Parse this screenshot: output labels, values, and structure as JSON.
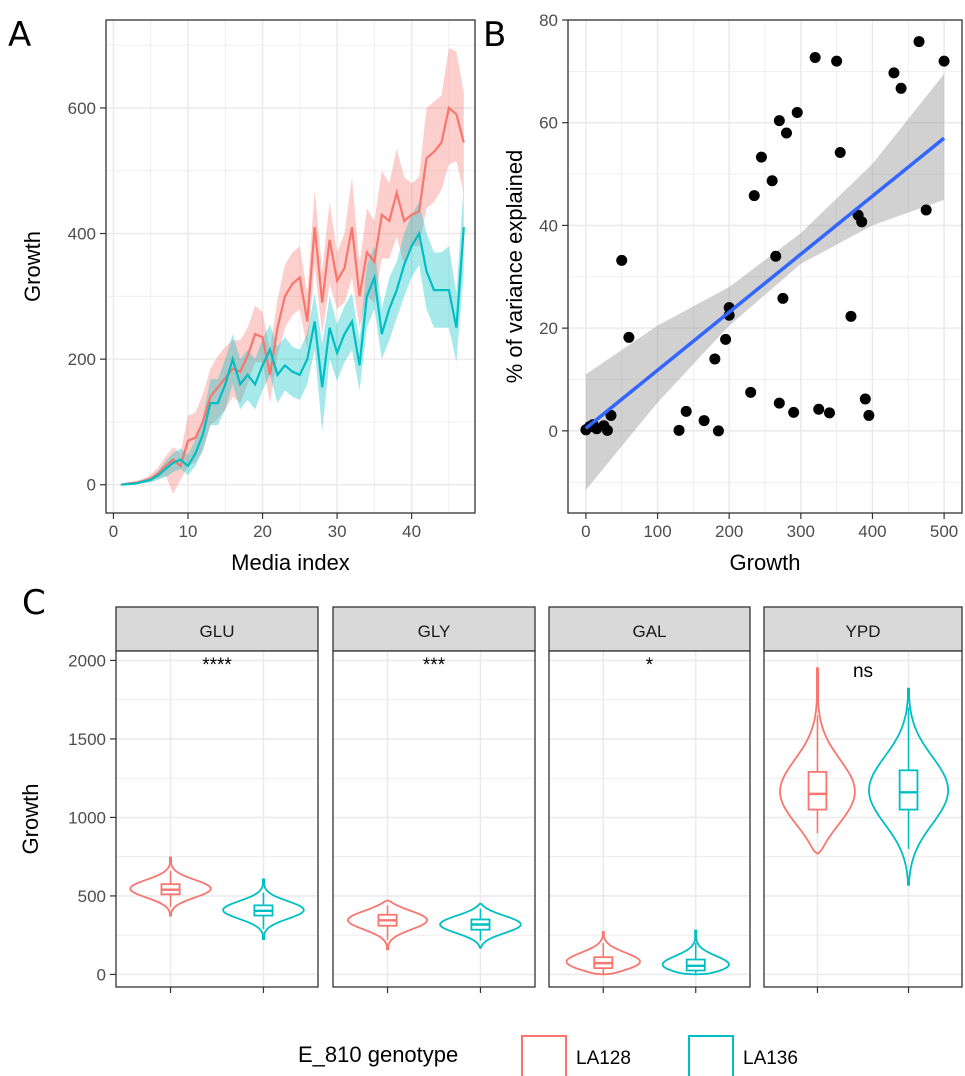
{
  "colors": {
    "LA128": "#F8766D",
    "LA136": "#00BFC4",
    "fit": "#3366FF",
    "ribbon": "#999999",
    "grid": "#EBEBEB",
    "strip_bg": "#D9D9D9"
  },
  "panel_labels": [
    "A",
    "B",
    "C"
  ],
  "chart_data": [
    {
      "panel": "A",
      "type": "line",
      "xlabel": "Media index",
      "ylabel": "Growth",
      "xlim": [
        -1,
        48.5
      ],
      "ylim": [
        -45,
        740
      ],
      "x_ticks": [
        0,
        10,
        20,
        30,
        40
      ],
      "y_ticks": [
        0,
        200,
        400,
        600
      ],
      "grid": true,
      "series": [
        {
          "name": "LA128",
          "color": "#F8766D",
          "x": [
            1,
            2,
            3,
            4,
            5,
            6,
            7,
            8,
            9,
            10,
            11,
            12,
            13,
            14,
            15,
            16,
            17,
            18,
            19,
            20,
            21,
            22,
            23,
            24,
            25,
            26,
            27,
            28,
            29,
            30,
            31,
            32,
            33,
            34,
            35,
            36,
            37,
            38,
            39,
            40,
            41,
            42,
            43,
            44,
            45,
            46,
            47
          ],
          "values": [
            0,
            2,
            3,
            6,
            10,
            18,
            30,
            40,
            30,
            70,
            75,
            100,
            140,
            155,
            170,
            185,
            180,
            205,
            240,
            235,
            175,
            250,
            300,
            320,
            330,
            260,
            410,
            290,
            390,
            325,
            345,
            410,
            300,
            370,
            355,
            430,
            420,
            465,
            420,
            430,
            435,
            520,
            530,
            545,
            600,
            590,
            545
          ],
          "lower": [
            0,
            1,
            1,
            3,
            5,
            10,
            15,
            -15,
            8,
            30,
            35,
            55,
            95,
            105,
            120,
            140,
            130,
            160,
            195,
            195,
            130,
            205,
            250,
            270,
            280,
            215,
            350,
            240,
            320,
            280,
            290,
            330,
            250,
            300,
            290,
            360,
            360,
            395,
            350,
            380,
            380,
            440,
            450,
            470,
            510,
            515,
            465
          ],
          "upper": [
            0,
            4,
            6,
            10,
            16,
            28,
            45,
            60,
            50,
            110,
            115,
            145,
            185,
            205,
            220,
            230,
            230,
            250,
            285,
            275,
            215,
            295,
            350,
            370,
            380,
            305,
            470,
            340,
            450,
            370,
            400,
            490,
            350,
            440,
            420,
            500,
            480,
            535,
            490,
            480,
            490,
            600,
            610,
            620,
            695,
            690,
            625
          ]
        },
        {
          "name": "LA136",
          "color": "#00BFC4",
          "x": [
            1,
            2,
            3,
            4,
            5,
            6,
            7,
            8,
            9,
            10,
            11,
            12,
            13,
            14,
            15,
            16,
            17,
            18,
            19,
            20,
            21,
            22,
            23,
            24,
            25,
            26,
            27,
            28,
            29,
            30,
            31,
            32,
            33,
            34,
            35,
            36,
            37,
            38,
            39,
            40,
            41,
            42,
            43,
            44,
            45,
            46,
            47
          ],
          "values": [
            0,
            1,
            2,
            5,
            8,
            15,
            25,
            35,
            40,
            30,
            50,
            80,
            130,
            130,
            160,
            200,
            160,
            175,
            160,
            190,
            215,
            175,
            190,
            180,
            175,
            200,
            260,
            155,
            250,
            210,
            240,
            260,
            190,
            300,
            330,
            240,
            280,
            310,
            350,
            380,
            400,
            340,
            310,
            310,
            310,
            250,
            410
          ],
          "lower": [
            0,
            0,
            1,
            2,
            4,
            8,
            12,
            20,
            25,
            15,
            30,
            55,
            95,
            95,
            120,
            160,
            120,
            135,
            120,
            150,
            175,
            130,
            150,
            140,
            135,
            160,
            215,
            85,
            200,
            165,
            195,
            215,
            150,
            250,
            280,
            200,
            230,
            265,
            300,
            330,
            350,
            280,
            250,
            250,
            250,
            195,
            340
          ],
          "upper": [
            0,
            2,
            4,
            8,
            12,
            22,
            38,
            50,
            58,
            48,
            72,
            108,
            168,
            168,
            200,
            240,
            200,
            215,
            200,
            232,
            255,
            220,
            235,
            220,
            215,
            242,
            305,
            225,
            300,
            255,
            285,
            305,
            230,
            350,
            380,
            280,
            330,
            355,
            400,
            430,
            450,
            400,
            370,
            370,
            380,
            305,
            480
          ]
        }
      ]
    },
    {
      "panel": "B",
      "type": "scatter",
      "xlabel": "Growth",
      "ylabel": "% of variance explained",
      "xlim": [
        -25,
        525
      ],
      "ylim": [
        -16,
        80
      ],
      "x_ticks": [
        0,
        100,
        200,
        300,
        400,
        500
      ],
      "y_ticks": [
        0,
        20,
        40,
        60,
        80
      ],
      "grid": true,
      "points": [
        [
          0,
          0.2
        ],
        [
          5,
          0.8
        ],
        [
          10,
          1.2
        ],
        [
          15,
          0.4
        ],
        [
          25,
          1.0
        ],
        [
          30,
          0.1
        ],
        [
          35,
          3.0
        ],
        [
          50,
          33.2
        ],
        [
          60,
          18.2
        ],
        [
          130,
          0.1
        ],
        [
          140,
          3.8
        ],
        [
          165,
          2.0
        ],
        [
          180,
          14.0
        ],
        [
          185,
          0.0
        ],
        [
          195,
          17.8
        ],
        [
          200,
          24.0
        ],
        [
          200,
          22.5
        ],
        [
          230,
          7.5
        ],
        [
          235,
          45.8
        ],
        [
          245,
          53.3
        ],
        [
          260,
          48.7
        ],
        [
          265,
          34.0
        ],
        [
          270,
          60.4
        ],
        [
          270,
          5.4
        ],
        [
          275,
          25.8
        ],
        [
          280,
          58.0
        ],
        [
          290,
          3.6
        ],
        [
          295,
          62.0
        ],
        [
          320,
          72.7
        ],
        [
          325,
          4.2
        ],
        [
          340,
          3.5
        ],
        [
          350,
          72.0
        ],
        [
          355,
          54.2
        ],
        [
          370,
          22.3
        ],
        [
          380,
          42.0
        ],
        [
          385,
          40.7
        ],
        [
          390,
          6.2
        ],
        [
          395,
          3.0
        ],
        [
          430,
          69.7
        ],
        [
          440,
          66.7
        ],
        [
          465,
          75.8
        ],
        [
          475,
          43.0
        ],
        [
          500,
          72.0
        ]
      ],
      "fit": {
        "x": [
          0,
          500
        ],
        "y": [
          0.5,
          57
        ]
      },
      "ci_lower": [
        [
          0,
          -11.5
        ],
        [
          100,
          5.5
        ],
        [
          200,
          20.5
        ],
        [
          300,
          32.5
        ],
        [
          400,
          40
        ],
        [
          500,
          45
        ]
      ],
      "ci_upper": [
        [
          0,
          11
        ],
        [
          100,
          20.5
        ],
        [
          200,
          28
        ],
        [
          300,
          38.5
        ],
        [
          400,
          52
        ],
        [
          500,
          69.5
        ]
      ]
    },
    {
      "panel": "C",
      "type": "violin",
      "ylabel": "Growth",
      "ylim": [
        -80,
        2060
      ],
      "y_ticks": [
        0,
        500,
        1000,
        1500,
        2000
      ],
      "grid": true,
      "legend": {
        "title": "E_810 genotype",
        "position": "bottom",
        "entries": [
          "LA128",
          "LA136"
        ]
      },
      "facets": [
        {
          "label": "GLU",
          "significance": "****",
          "groups": [
            {
              "genotype": "LA128",
              "min": 375,
              "max": 745,
              "q1": 510,
              "median": 540,
              "q3": 575,
              "whisker_low": 430,
              "whisker_high": 660,
              "peak": 545
            },
            {
              "genotype": "LA136",
              "min": 225,
              "max": 605,
              "q1": 375,
              "median": 405,
              "q3": 440,
              "whisker_low": 290,
              "whisker_high": 520,
              "peak": 410
            }
          ]
        },
        {
          "label": "GLY",
          "significance": "***",
          "groups": [
            {
              "genotype": "LA128",
              "min": 160,
              "max": 470,
              "q1": 310,
              "median": 345,
              "q3": 380,
              "whisker_low": 220,
              "whisker_high": 440,
              "peak": 350
            },
            {
              "genotype": "LA136",
              "min": 170,
              "max": 450,
              "q1": 285,
              "median": 318,
              "q3": 350,
              "whisker_low": 215,
              "whisker_high": 420,
              "peak": 320
            }
          ]
        },
        {
          "label": "GAL",
          "significance": "*",
          "groups": [
            {
              "genotype": "LA128",
              "min": 0,
              "max": 270,
              "q1": 40,
              "median": 72,
              "q3": 110,
              "whisker_low": 5,
              "whisker_high": 200,
              "peak": 70
            },
            {
              "genotype": "LA136",
              "min": 0,
              "max": 280,
              "q1": 25,
              "median": 55,
              "q3": 95,
              "whisker_low": 0,
              "whisker_high": 200,
              "peak": 45
            }
          ]
        },
        {
          "label": "YPD",
          "significance": "ns",
          "groups": [
            {
              "genotype": "LA128",
              "min": 770,
              "max": 1950,
              "q1": 1050,
              "median": 1150,
              "q3": 1290,
              "whisker_low": 900,
              "whisker_high": 1650,
              "peak": 1140
            },
            {
              "genotype": "LA136",
              "min": 570,
              "max": 1820,
              "q1": 1050,
              "median": 1160,
              "q3": 1300,
              "whisker_low": 800,
              "whisker_high": 1700,
              "peak": 1170
            }
          ]
        }
      ]
    }
  ]
}
